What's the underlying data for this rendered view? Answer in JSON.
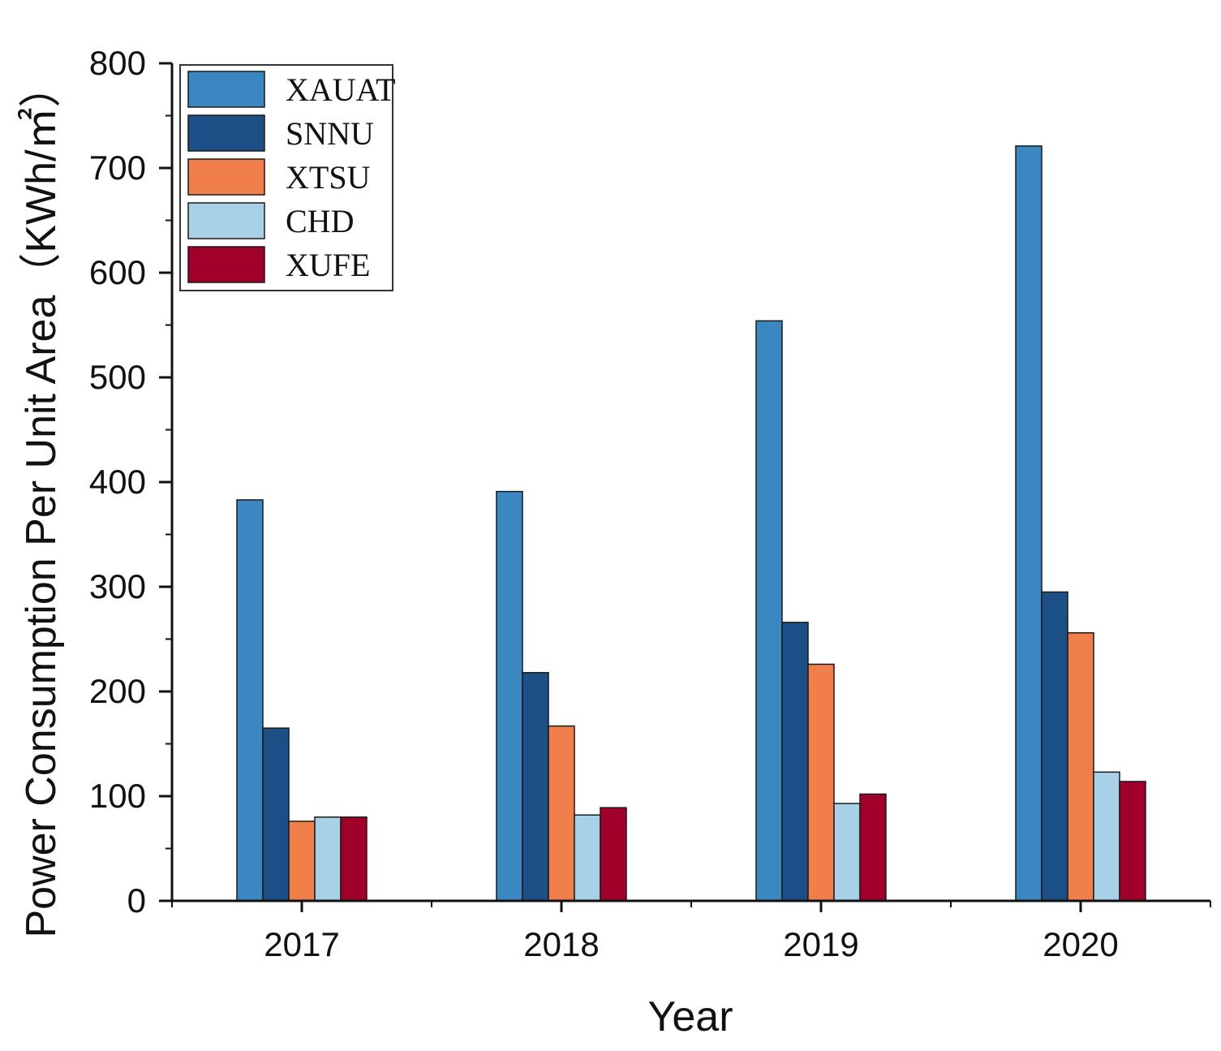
{
  "chart_data": {
    "type": "bar",
    "title": "",
    "xlabel": "Year",
    "ylabel": "Power Consumption Per Unit Area（KWh/㎡）",
    "categories": [
      "2017",
      "2018",
      "2019",
      "2020"
    ],
    "ylim": [
      0,
      800
    ],
    "yticks": [
      0,
      100,
      200,
      300,
      400,
      500,
      600,
      700,
      800
    ],
    "grid": false,
    "legend_position": "top-left",
    "series": [
      {
        "name": "XAUAT",
        "color": "#3a87c1",
        "values": [
          383,
          391,
          554,
          721
        ]
      },
      {
        "name": "SNNU",
        "color": "#1b4f86",
        "values": [
          165,
          218,
          266,
          295
        ]
      },
      {
        "name": "XTSU",
        "color": "#f07f4c",
        "values": [
          76,
          167,
          226,
          256
        ]
      },
      {
        "name": "CHD",
        "color": "#a8d0e6",
        "values": [
          80,
          82,
          93,
          123
        ]
      },
      {
        "name": "XUFE",
        "color": "#a1002a",
        "values": [
          80,
          89,
          102,
          114
        ]
      }
    ]
  }
}
